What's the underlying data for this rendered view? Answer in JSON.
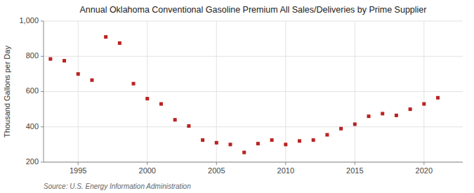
{
  "chart_data": {
    "type": "scatter",
    "title": "Annual Oklahoma Conventional Gasoline Premium All Sales/Deliveries by Prime Supplier",
    "y_label": "Thousand Gallons per Day",
    "source": "Source: U.S. Energy Information Administration",
    "x": [
      1993,
      1994,
      1995,
      1996,
      1997,
      1998,
      1999,
      2000,
      2001,
      2002,
      2003,
      2004,
      2005,
      2006,
      2007,
      2008,
      2009,
      2010,
      2011,
      2012,
      2013,
      2014,
      2015,
      2016,
      2017,
      2018,
      2019,
      2020,
      2021
    ],
    "values": [
      785,
      775,
      700,
      665,
      910,
      875,
      645,
      560,
      530,
      440,
      405,
      325,
      310,
      300,
      255,
      305,
      325,
      300,
      320,
      325,
      355,
      390,
      415,
      460,
      475,
      465,
      500,
      530,
      565
    ],
    "color": "#bb2222",
    "marker": "square",
    "grid": true,
    "xlim": [
      1992.5,
      2022.8
    ],
    "xticks": [
      1995,
      2000,
      2005,
      2010,
      2015,
      2020
    ],
    "ylim": [
      200,
      1000
    ],
    "yticks": [
      200,
      400,
      600,
      800,
      {
        "value": 1000,
        "label": "1,000"
      }
    ]
  }
}
